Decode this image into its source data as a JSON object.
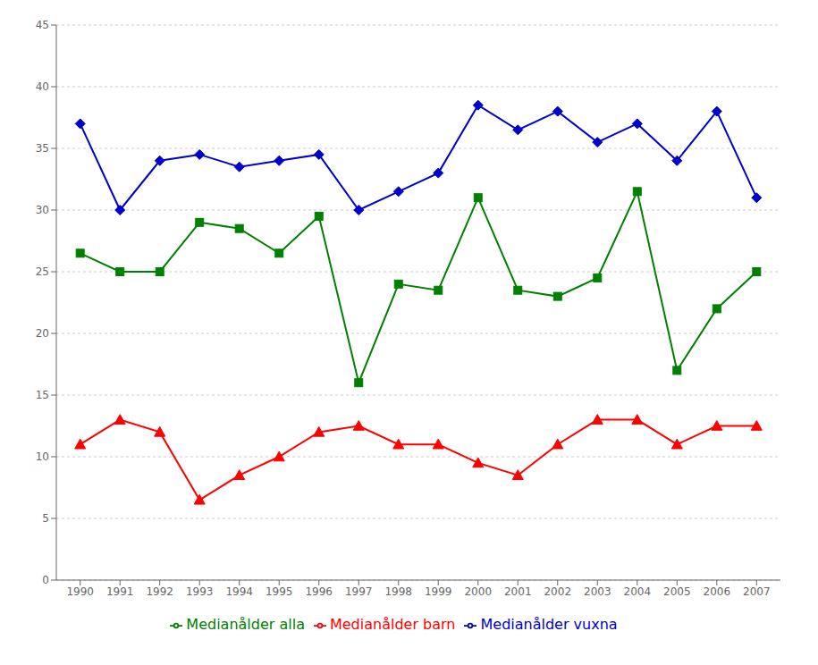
{
  "chart_data": {
    "type": "line",
    "x": [
      1990,
      1991,
      1992,
      1993,
      1994,
      1995,
      1996,
      1997,
      1998,
      1999,
      2000,
      2001,
      2002,
      2003,
      2004,
      2005,
      2006,
      2007
    ],
    "xlim": [
      1989.4,
      2007.6
    ],
    "xticks": [
      1990,
      1991,
      1992,
      1993,
      1994,
      1995,
      1996,
      1997,
      1998,
      1999,
      2000,
      2001,
      2002,
      2003,
      2004,
      2005,
      2006,
      2007
    ],
    "ylim": [
      0,
      45
    ],
    "yticks": [
      0,
      5,
      10,
      15,
      20,
      25,
      30,
      35,
      40,
      45
    ],
    "grid": true,
    "legend": "bottom",
    "series": [
      {
        "name": "Medianålder alla",
        "color": "#008000",
        "marker": "square",
        "values": [
          26.5,
          25,
          25,
          29,
          28.5,
          26.5,
          29.5,
          16,
          24,
          23.5,
          31,
          23.5,
          23,
          24.5,
          31.5,
          17,
          22,
          25
        ]
      },
      {
        "name": "Medianålder vuxna",
        "color": "#0000CC",
        "marker": "diamond",
        "values": [
          37,
          30,
          34,
          34.5,
          33.5,
          34,
          34.5,
          30,
          31.5,
          33,
          38.5,
          36.5,
          38,
          35.5,
          37,
          34,
          38,
          31
        ]
      },
      {
        "name": "Medianålder barn",
        "color": "#FF0000",
        "marker": "triangle",
        "values": [
          11,
          13,
          12,
          6.5,
          8.5,
          10,
          12,
          12.5,
          11,
          11,
          9.5,
          8.5,
          11,
          13,
          13,
          11,
          12.5,
          12.5
        ]
      }
    ]
  }
}
